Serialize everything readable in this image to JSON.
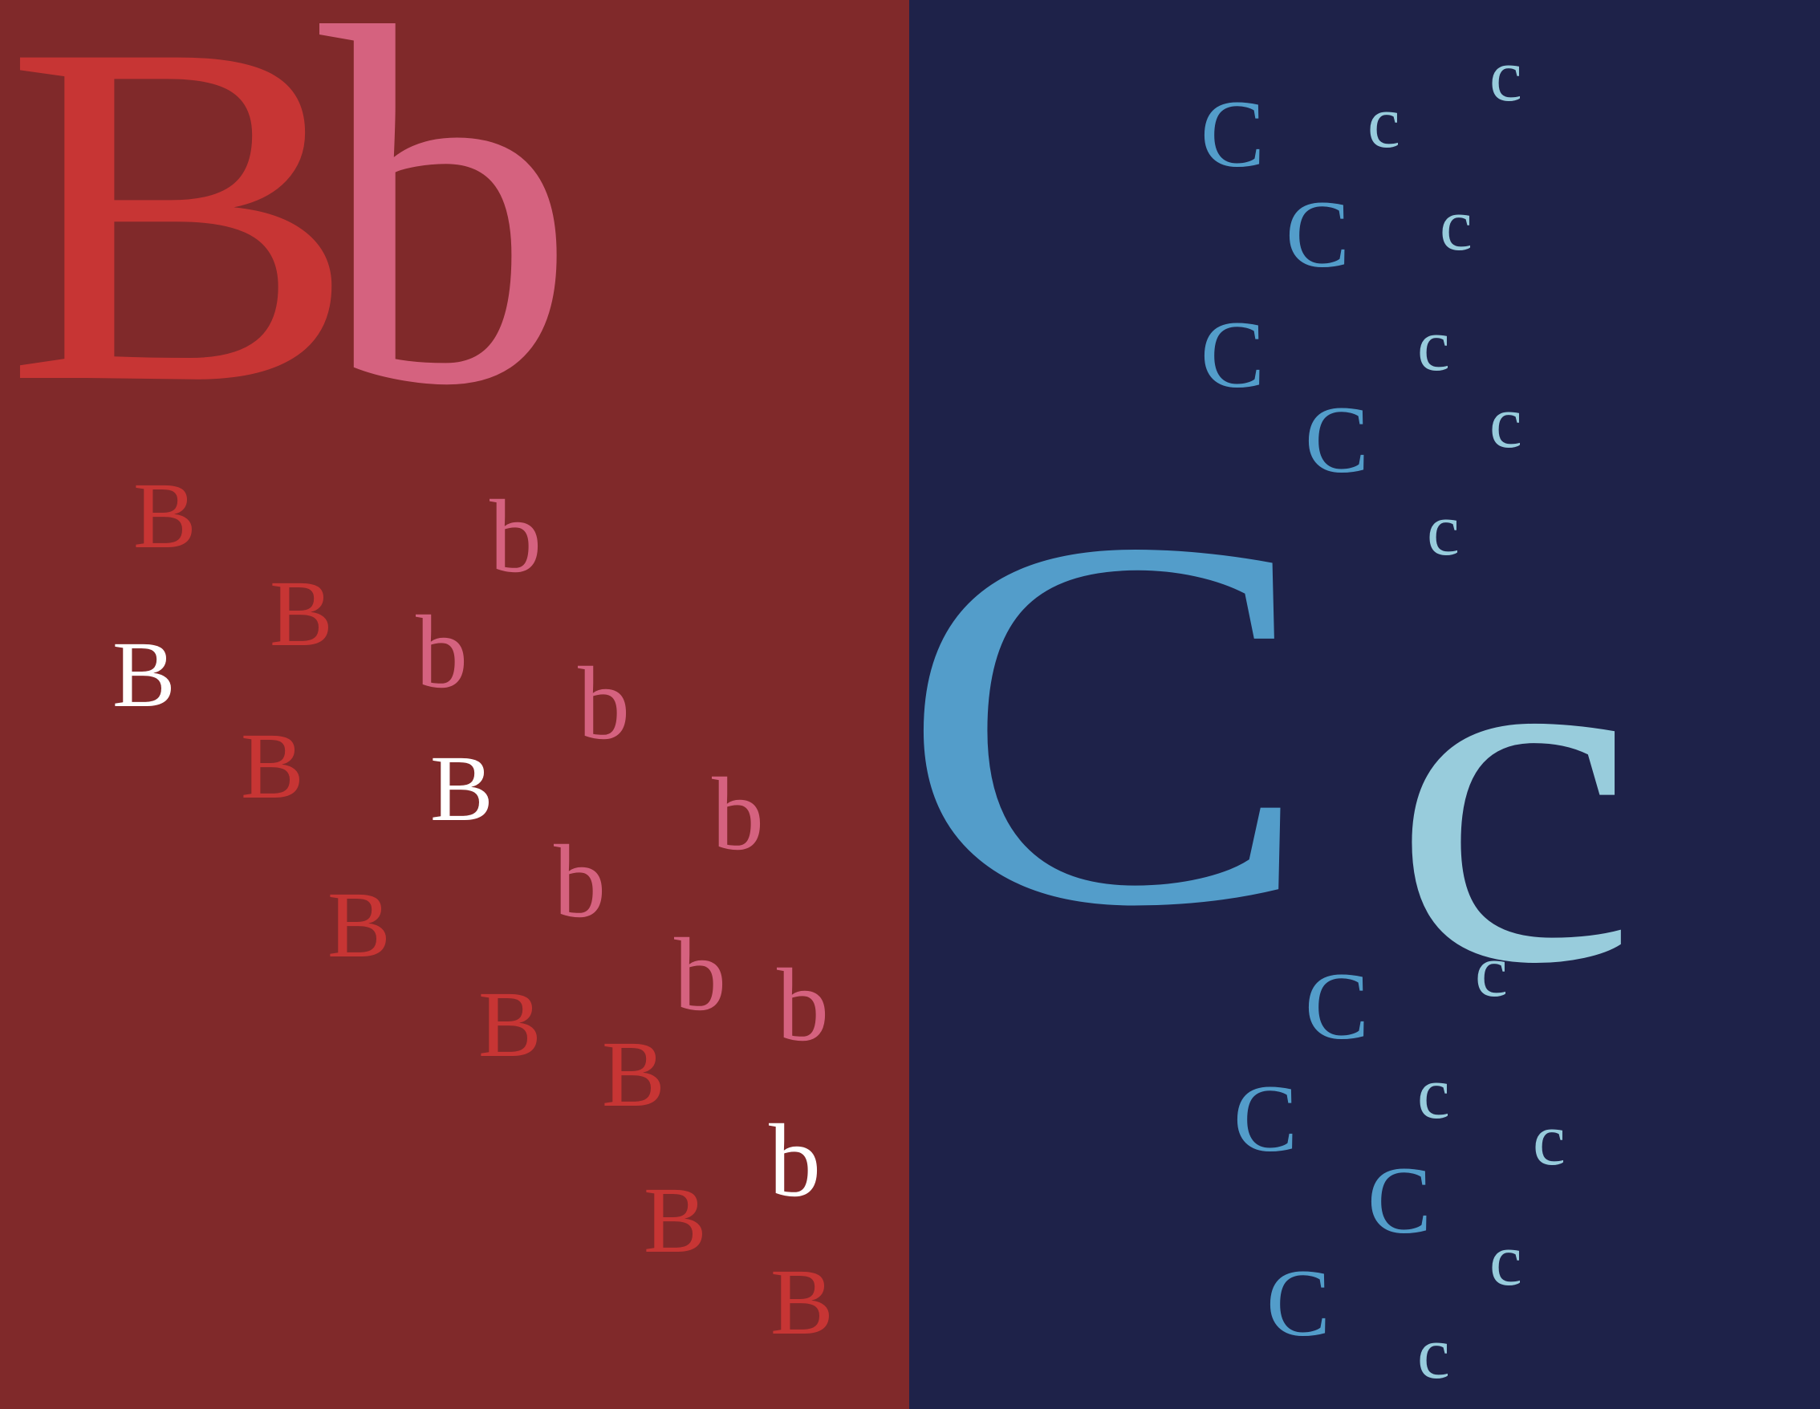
{
  "colors": {
    "b_panel_bg": "#80292A",
    "c_panel_bg": "#1E2249",
    "b_upper_red": "#C73534",
    "b_lower_pink": "#D5627F",
    "b_white": "#FFFFFF",
    "c_blue": "#539DCA",
    "c_light_blue": "#98CCDC"
  },
  "panel_b": {
    "big_upper": "B",
    "big_lower": "b",
    "small_letters": [
      {
        "ch": "B",
        "color": "red"
      },
      {
        "ch": "B",
        "color": "red"
      },
      {
        "ch": "B",
        "color": "white"
      },
      {
        "ch": "B",
        "color": "red"
      },
      {
        "ch": "B",
        "color": "white"
      },
      {
        "ch": "B",
        "color": "red"
      },
      {
        "ch": "B",
        "color": "red"
      },
      {
        "ch": "B",
        "color": "red"
      },
      {
        "ch": "B",
        "color": "red"
      },
      {
        "ch": "B",
        "color": "red"
      },
      {
        "ch": "b",
        "color": "pink"
      },
      {
        "ch": "b",
        "color": "pink"
      },
      {
        "ch": "b",
        "color": "pink"
      },
      {
        "ch": "b",
        "color": "pink"
      },
      {
        "ch": "b",
        "color": "pink"
      },
      {
        "ch": "b",
        "color": "pink"
      },
      {
        "ch": "b",
        "color": "pink"
      },
      {
        "ch": "b",
        "color": "white"
      }
    ]
  },
  "panel_c": {
    "big_upper": "C",
    "big_lower": "c",
    "small_letters": [
      {
        "ch": "C",
        "color": "blue"
      },
      {
        "ch": "C",
        "color": "blue"
      },
      {
        "ch": "C",
        "color": "blue"
      },
      {
        "ch": "C",
        "color": "blue"
      },
      {
        "ch": "C",
        "color": "blue"
      },
      {
        "ch": "C",
        "color": "blue"
      },
      {
        "ch": "C",
        "color": "blue"
      },
      {
        "ch": "C",
        "color": "blue"
      },
      {
        "ch": "c",
        "color": "light"
      },
      {
        "ch": "c",
        "color": "light"
      },
      {
        "ch": "c",
        "color": "light"
      },
      {
        "ch": "c",
        "color": "light"
      },
      {
        "ch": "c",
        "color": "light"
      },
      {
        "ch": "c",
        "color": "light"
      },
      {
        "ch": "c",
        "color": "light"
      },
      {
        "ch": "c",
        "color": "light"
      },
      {
        "ch": "c",
        "color": "light"
      },
      {
        "ch": "c",
        "color": "light"
      },
      {
        "ch": "c",
        "color": "light"
      }
    ]
  }
}
